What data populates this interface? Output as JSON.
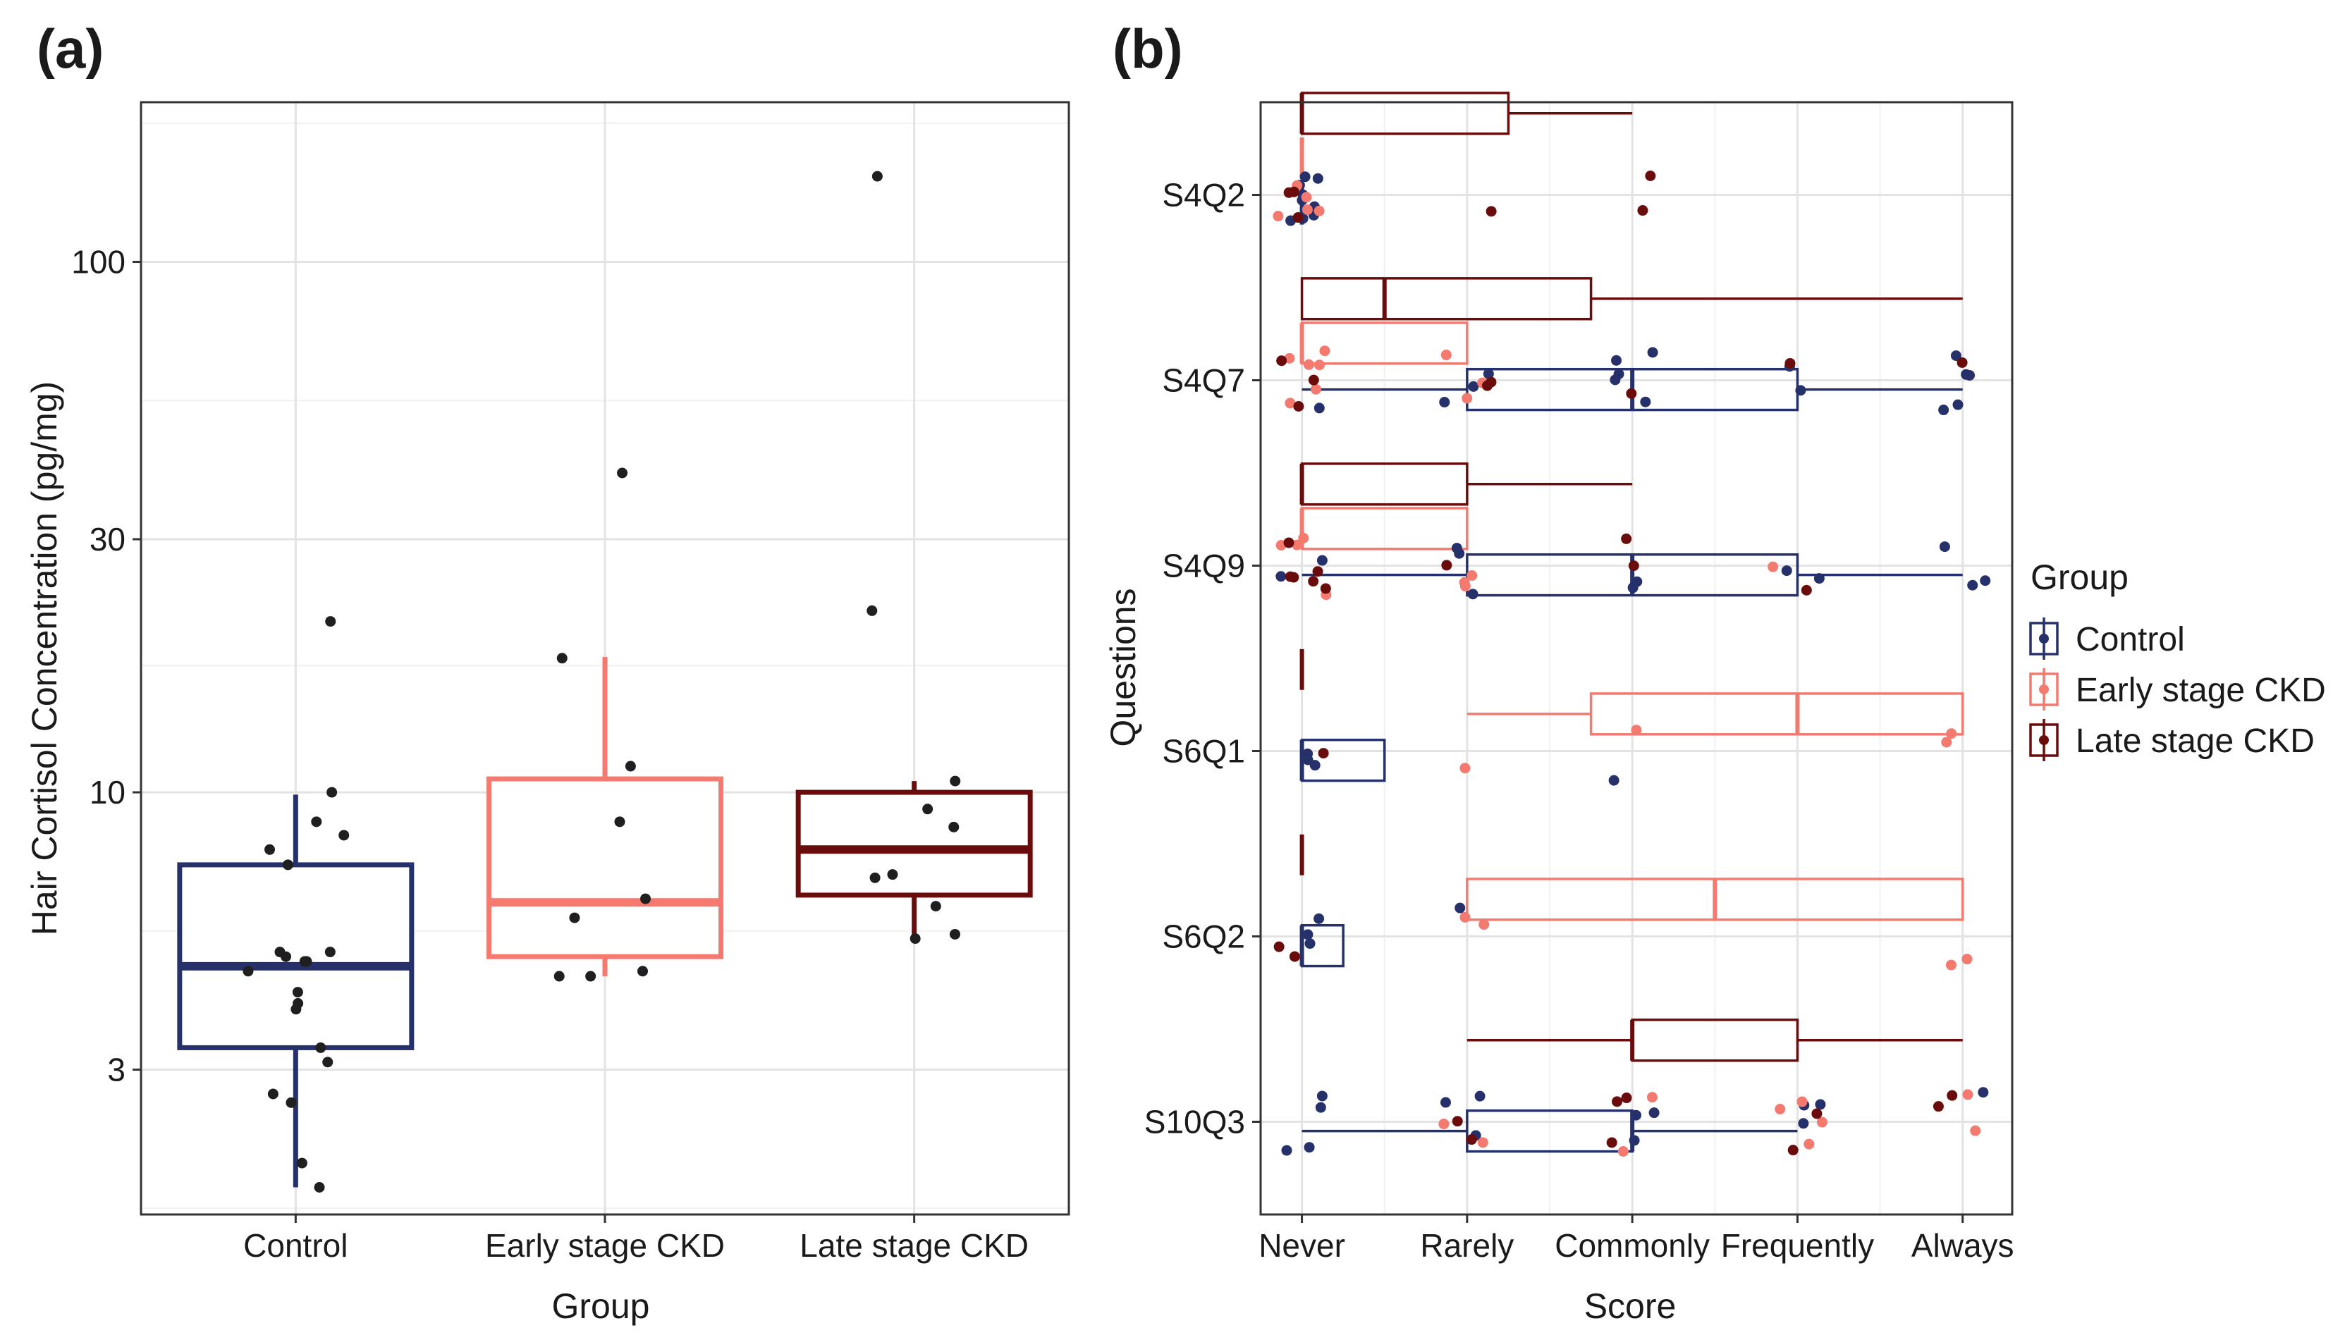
{
  "colors": {
    "control": "#26306a",
    "early": "#f47a70",
    "late": "#6b0c0c",
    "points_a": "#1f1f1f"
  },
  "chart_data": [
    {
      "id": "a",
      "panel_label": "(a)",
      "type": "box",
      "xlabel": "Group",
      "ylabel": "Hair Cortisol Concentration (pg/mg)",
      "y_scale": "log10",
      "ylim": [
        1.6,
        200
      ],
      "yticks": [
        3,
        10,
        30,
        100
      ],
      "ytick_labels": [
        "3",
        "10",
        "30",
        "100"
      ],
      "categories": [
        "Control",
        "Early stage CKD",
        "Late stage CKD"
      ],
      "boxes": [
        {
          "group": "Control",
          "color_key": "control",
          "whisker_low": 1.8,
          "q1": 3.3,
          "median": 4.7,
          "q3": 7.3,
          "whisker_high": 9.9,
          "points": [
            1.8,
            2.0,
            2.6,
            2.7,
            3.1,
            3.3,
            3.9,
            4.0,
            4.2,
            4.6,
            4.8,
            4.8,
            4.9,
            5.0,
            5.0,
            7.3,
            7.8,
            8.3,
            8.8,
            10.0,
            21.0
          ]
        },
        {
          "group": "Early stage CKD",
          "color_key": "early",
          "whisker_low": 4.5,
          "q1": 4.9,
          "median": 6.2,
          "q3": 10.6,
          "whisker_high": 18.0,
          "points": [
            4.5,
            4.5,
            4.6,
            5.8,
            6.3,
            8.8,
            11.2,
            17.9,
            40.0
          ]
        },
        {
          "group": "Late stage CKD",
          "color_key": "late",
          "whisker_low": 5.3,
          "q1": 6.4,
          "median": 7.8,
          "q3": 10.0,
          "whisker_high": 10.5,
          "points": [
            5.3,
            5.4,
            6.1,
            6.9,
            7.0,
            8.6,
            9.3,
            10.5,
            22.0,
            145.0
          ]
        }
      ]
    },
    {
      "id": "b",
      "panel_label": "(b)",
      "type": "box",
      "orientation": "horizontal",
      "xlabel": "Score",
      "ylabel": "Questions",
      "x_categories": [
        "Never",
        "Rarely",
        "Commonly",
        "Frequently",
        "Always"
      ],
      "xlim": [
        0.75,
        5.3
      ],
      "questions": [
        "S4Q2",
        "S4Q7",
        "S4Q9",
        "S6Q1",
        "S6Q2",
        "S10Q3"
      ],
      "legend": {
        "title": "Group",
        "entries": [
          {
            "label": "Control",
            "color_key": "control"
          },
          {
            "label": "Early stage CKD",
            "color_key": "early"
          },
          {
            "label": "Late stage CKD",
            "color_key": "late"
          }
        ]
      },
      "boxes": [
        {
          "question": "S4Q2",
          "group": "Late stage CKD",
          "color_key": "late",
          "whisker_low": 1,
          "q1": 1,
          "median": 1,
          "q3": 2.25,
          "whisker_high": 3
        },
        {
          "question": "S4Q2",
          "group": "Early stage CKD",
          "color_key": "early",
          "whisker_low": 1,
          "q1": 1,
          "median": 1,
          "q3": 1,
          "whisker_high": 1
        },
        {
          "question": "S4Q2",
          "group": "Control",
          "color_key": "control",
          "whisker_low": 1,
          "q1": 1,
          "median": 1,
          "q3": 1,
          "whisker_high": 1
        },
        {
          "question": "S4Q7",
          "group": "Late stage CKD",
          "color_key": "late",
          "whisker_low": 1,
          "q1": 1,
          "median": 1.5,
          "q3": 2.75,
          "whisker_high": 5
        },
        {
          "question": "S4Q7",
          "group": "Early stage CKD",
          "color_key": "early",
          "whisker_low": 1,
          "q1": 1,
          "median": 1,
          "q3": 2,
          "whisker_high": 2
        },
        {
          "question": "S4Q7",
          "group": "Control",
          "color_key": "control",
          "whisker_low": 1,
          "q1": 2,
          "median": 3,
          "q3": 4,
          "whisker_high": 5
        },
        {
          "question": "S4Q9",
          "group": "Late stage CKD",
          "color_key": "late",
          "whisker_low": 1,
          "q1": 1,
          "median": 1,
          "q3": 2,
          "whisker_high": 3
        },
        {
          "question": "S4Q9",
          "group": "Early stage CKD",
          "color_key": "early",
          "whisker_low": 1,
          "q1": 1,
          "median": 1,
          "q3": 2,
          "whisker_high": 2
        },
        {
          "question": "S4Q9",
          "group": "Control",
          "color_key": "control",
          "whisker_low": 1,
          "q1": 2,
          "median": 3,
          "q3": 4,
          "whisker_high": 5
        },
        {
          "question": "S6Q1",
          "group": "Late stage CKD",
          "color_key": "late",
          "whisker_low": 1,
          "q1": 1,
          "median": 1,
          "q3": 1,
          "whisker_high": 1
        },
        {
          "question": "S6Q1",
          "group": "Early stage CKD",
          "color_key": "early",
          "whisker_low": 2,
          "q1": 2.75,
          "median": 4,
          "q3": 5,
          "whisker_high": 5
        },
        {
          "question": "S6Q1",
          "group": "Control",
          "color_key": "control",
          "whisker_low": 1,
          "q1": 1,
          "median": 1,
          "q3": 1.5,
          "whisker_high": 1.5
        },
        {
          "question": "S6Q2",
          "group": "Late stage CKD",
          "color_key": "late",
          "whisker_low": 1,
          "q1": 1,
          "median": 1,
          "q3": 1,
          "whisker_high": 1
        },
        {
          "question": "S6Q2",
          "group": "Early stage CKD",
          "color_key": "early",
          "whisker_low": 2,
          "q1": 2,
          "median": 3.5,
          "q3": 5,
          "whisker_high": 5
        },
        {
          "question": "S6Q2",
          "group": "Control",
          "color_key": "control",
          "whisker_low": 1,
          "q1": 1,
          "median": 1,
          "q3": 1.25,
          "whisker_high": 1.25
        },
        {
          "question": "S10Q3",
          "group": "Late stage CKD",
          "color_key": "late",
          "whisker_low": 2,
          "q1": 3,
          "median": 3,
          "q3": 4,
          "whisker_high": 5
        },
        {
          "question": "S10Q3",
          "group": "Control",
          "color_key": "control",
          "whisker_low": 1,
          "q1": 2,
          "median": 3,
          "q3": 3,
          "whisker_high": 4
        }
      ],
      "points": [
        {
          "question": "S4Q2",
          "group": "Control",
          "scores": [
            1,
            1,
            1,
            1,
            1,
            1,
            1,
            1,
            1
          ]
        },
        {
          "question": "S4Q2",
          "group": "Early stage CKD",
          "scores": [
            1,
            1,
            1,
            1,
            1
          ]
        },
        {
          "question": "S4Q2",
          "group": "Late stage CKD",
          "scores": [
            1,
            1,
            1,
            2,
            3,
            3
          ]
        },
        {
          "question": "S4Q7",
          "group": "Control",
          "scores": [
            1,
            2,
            2,
            2,
            3,
            3,
            3,
            3,
            3,
            4,
            4,
            5,
            5,
            5,
            5,
            5
          ]
        },
        {
          "question": "S4Q7",
          "group": "Early stage CKD",
          "scores": [
            1,
            1,
            1,
            1,
            1,
            1,
            2,
            2,
            2
          ]
        },
        {
          "question": "S4Q7",
          "group": "Late stage CKD",
          "scores": [
            1,
            1,
            1,
            2,
            2,
            3,
            4,
            5
          ]
        },
        {
          "question": "S4Q9",
          "group": "Control",
          "scores": [
            1,
            1,
            2,
            2,
            2,
            3,
            3,
            4,
            4,
            5,
            5,
            5
          ]
        },
        {
          "question": "S4Q9",
          "group": "Early stage CKD",
          "scores": [
            1,
            1,
            1,
            1,
            2,
            2,
            2,
            4
          ]
        },
        {
          "question": "S4Q9",
          "group": "Late stage CKD",
          "scores": [
            1,
            1,
            1,
            1,
            1,
            1,
            2,
            3,
            3,
            4
          ]
        },
        {
          "question": "S6Q1",
          "group": "Control",
          "scores": [
            1,
            1,
            1,
            3
          ]
        },
        {
          "question": "S6Q1",
          "group": "Early stage CKD",
          "scores": [
            2,
            3,
            5,
            5
          ]
        },
        {
          "question": "S6Q1",
          "group": "Late stage CKD",
          "scores": [
            1
          ]
        },
        {
          "question": "S6Q2",
          "group": "Control",
          "scores": [
            1,
            1,
            1,
            2
          ]
        },
        {
          "question": "S6Q2",
          "group": "Early stage CKD",
          "scores": [
            2,
            2,
            5,
            5
          ]
        },
        {
          "question": "S6Q2",
          "group": "Late stage CKD",
          "scores": [
            1,
            1
          ]
        },
        {
          "question": "S10Q3",
          "group": "Control",
          "scores": [
            1,
            1,
            1,
            1,
            2,
            2,
            2,
            3,
            3,
            3,
            4,
            4,
            4,
            5
          ]
        },
        {
          "question": "S10Q3",
          "group": "Early stage CKD",
          "scores": [
            2,
            2,
            3,
            3,
            4,
            4,
            4,
            4,
            5,
            5
          ]
        },
        {
          "question": "S10Q3",
          "group": "Late stage CKD",
          "scores": [
            2,
            2,
            3,
            3,
            3,
            4,
            4,
            5,
            5
          ]
        }
      ]
    }
  ]
}
